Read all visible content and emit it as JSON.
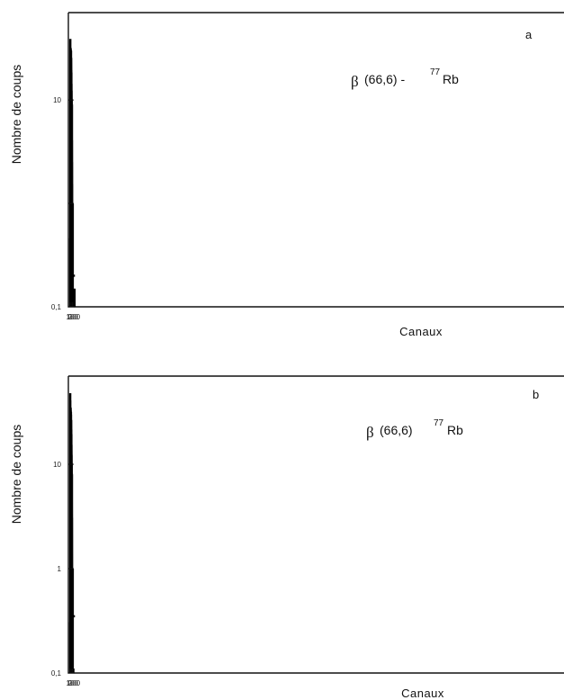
{
  "chart_data": [
    {
      "type": "line",
      "panel": "a",
      "annotation": {
        "symbol": "β",
        "text": "(66,6) -",
        "mass": "77",
        "element": "Rb"
      },
      "xlabel": "Canaux",
      "ylabel": "Nombre de coups",
      "xlim": [
        0,
        250
      ],
      "x_ticks": [
        0,
        100,
        200
      ],
      "y_scale": "log",
      "ylim": [
        0.1,
        70
      ],
      "y_ticks": [
        {
          "value": 0.1,
          "label": "0,1"
        },
        {
          "value": 1,
          "label": ""
        },
        {
          "value": 10,
          "label": "10"
        }
      ],
      "grid": false,
      "series": [
        {
          "name": "",
          "style": "thick histogram",
          "x": [
            1,
            2,
            3,
            4,
            5,
            6,
            8,
            10,
            12,
            14,
            17,
            20,
            23,
            26,
            29,
            32,
            35,
            38,
            41,
            44,
            47,
            50,
            53,
            56,
            59,
            62,
            65,
            68,
            71,
            73,
            75,
            78,
            81,
            84,
            86,
            88,
            90,
            92,
            94,
            96,
            98,
            100,
            102,
            104,
            106
          ],
          "y": [
            0.1,
            0.45,
            2.5,
            14,
            26,
            38,
            33,
            30,
            32,
            28,
            30,
            29,
            31,
            28,
            30,
            25,
            27,
            29,
            24,
            30,
            22,
            25,
            21,
            19,
            18,
            15,
            14,
            11,
            12,
            9,
            10,
            8,
            7,
            9,
            6,
            4,
            1.2,
            3,
            2,
            2.5,
            1.5,
            1.2,
            0.8,
            0.35,
            0.2
          ]
        },
        {
          "name": "",
          "style": "thin histogram",
          "x": [
            1,
            2,
            3,
            5,
            7,
            10,
            14,
            18,
            22,
            26,
            30,
            34,
            38,
            42,
            46,
            50,
            54,
            58,
            62,
            66,
            70,
            73,
            76,
            79,
            82,
            85,
            88,
            91,
            94,
            97,
            100,
            102,
            104
          ],
          "y": [
            0.1,
            1,
            6,
            25,
            30,
            28,
            29,
            27,
            28,
            27,
            28,
            26,
            27,
            24,
            23,
            22,
            20,
            18,
            17,
            14,
            13,
            10,
            9,
            10,
            8,
            7,
            4,
            2.5,
            1.5,
            1.2,
            1,
            0.3,
            0.1
          ]
        },
        {
          "name": "",
          "style": "smooth fit curve",
          "x": [
            3,
            6,
            10,
            20,
            30,
            40,
            50,
            60,
            70,
            80,
            85,
            90,
            95,
            100,
            105
          ],
          "y": [
            8,
            28,
            27,
            27,
            26,
            24,
            21,
            16,
            11,
            6.5,
            4,
            2,
            1.1,
            0.5,
            0.2
          ]
        }
      ],
      "isolated_peaks": [
        {
          "x": 75,
          "y": 10
        },
        {
          "x": 86,
          "y": 9
        },
        {
          "x": 109,
          "y": 1
        },
        {
          "x": 114,
          "y": 1
        },
        {
          "x": 119,
          "y": 1
        },
        {
          "x": 124,
          "y": 1
        },
        {
          "x": 129,
          "y": 1
        },
        {
          "x": 135,
          "y": 0.15
        },
        {
          "x": 220,
          "y": 0.15
        }
      ]
    },
    {
      "type": "line",
      "panel": "b",
      "annotation": {
        "symbol": "β",
        "text": "(66,6)",
        "mass": "77",
        "element": "Rb"
      },
      "xlabel": "Canaux",
      "ylabel": "Nombre de coups",
      "xlim": [
        0,
        250
      ],
      "x_ticks": [
        0,
        100,
        200
      ],
      "y_scale": "log",
      "ylim": [
        0.1,
        70
      ],
      "y_ticks": [
        {
          "value": 0.1,
          "label": "0,1"
        },
        {
          "value": 1,
          "label": "1"
        },
        {
          "value": 10,
          "label": "10"
        }
      ],
      "grid": false,
      "series": [
        {
          "name": "",
          "style": "thick histogram",
          "x": [
            1,
            2,
            3,
            4,
            5,
            6,
            8,
            10,
            12,
            14,
            17,
            20,
            23,
            26,
            29,
            32,
            35,
            38,
            41,
            44,
            47,
            50,
            53,
            56,
            59,
            62,
            65,
            68,
            71,
            73,
            75,
            78,
            81,
            84,
            86,
            88,
            90,
            92,
            94,
            96,
            98,
            100,
            102,
            104,
            106
          ],
          "y": [
            0.1,
            0.3,
            3,
            18,
            48,
            40,
            36,
            33,
            35,
            30,
            33,
            31,
            34,
            30,
            32,
            27,
            29,
            31,
            26,
            30,
            24,
            26,
            22,
            21,
            19,
            17,
            15,
            12,
            12,
            9,
            10,
            8,
            7,
            8,
            5,
            3,
            1.5,
            1.2,
            1,
            0.9,
            0.8,
            0.6,
            0.5,
            0.4,
            0.35
          ]
        },
        {
          "name": "",
          "style": "thin histogram",
          "x": [
            1,
            2,
            3,
            5,
            7,
            10,
            14,
            18,
            22,
            26,
            30,
            34,
            38,
            42,
            46,
            50,
            54,
            58,
            62,
            66,
            70,
            73,
            76,
            79,
            82,
            85,
            88,
            91,
            94,
            97,
            100,
            102,
            104
          ],
          "y": [
            0.1,
            1,
            10,
            35,
            33,
            30,
            32,
            29,
            30,
            28,
            29,
            28,
            27,
            25,
            24,
            22,
            21,
            19,
            17,
            15,
            13,
            11,
            9,
            8,
            7,
            5,
            3,
            2,
            1.5,
            1.2,
            1,
            0.5,
            0.1
          ]
        },
        {
          "name": "",
          "style": "smooth fit curve",
          "x": [
            3,
            6,
            10,
            20,
            30,
            40,
            50,
            60,
            70,
            80,
            85,
            90,
            95,
            100,
            105
          ],
          "y": [
            6,
            35,
            33,
            31,
            29,
            26,
            22,
            17,
            12,
            7,
            4.5,
            2.5,
            1.3,
            0.7,
            0.35
          ]
        }
      ],
      "isolated_peaks": [
        {
          "x": 75,
          "y": 10
        },
        {
          "x": 86,
          "y": 8
        },
        {
          "x": 109,
          "y": 1
        },
        {
          "x": 114,
          "y": 1
        },
        {
          "x": 119,
          "y": 1
        },
        {
          "x": 124,
          "y": 1
        },
        {
          "x": 129,
          "y": 1
        }
      ]
    }
  ]
}
